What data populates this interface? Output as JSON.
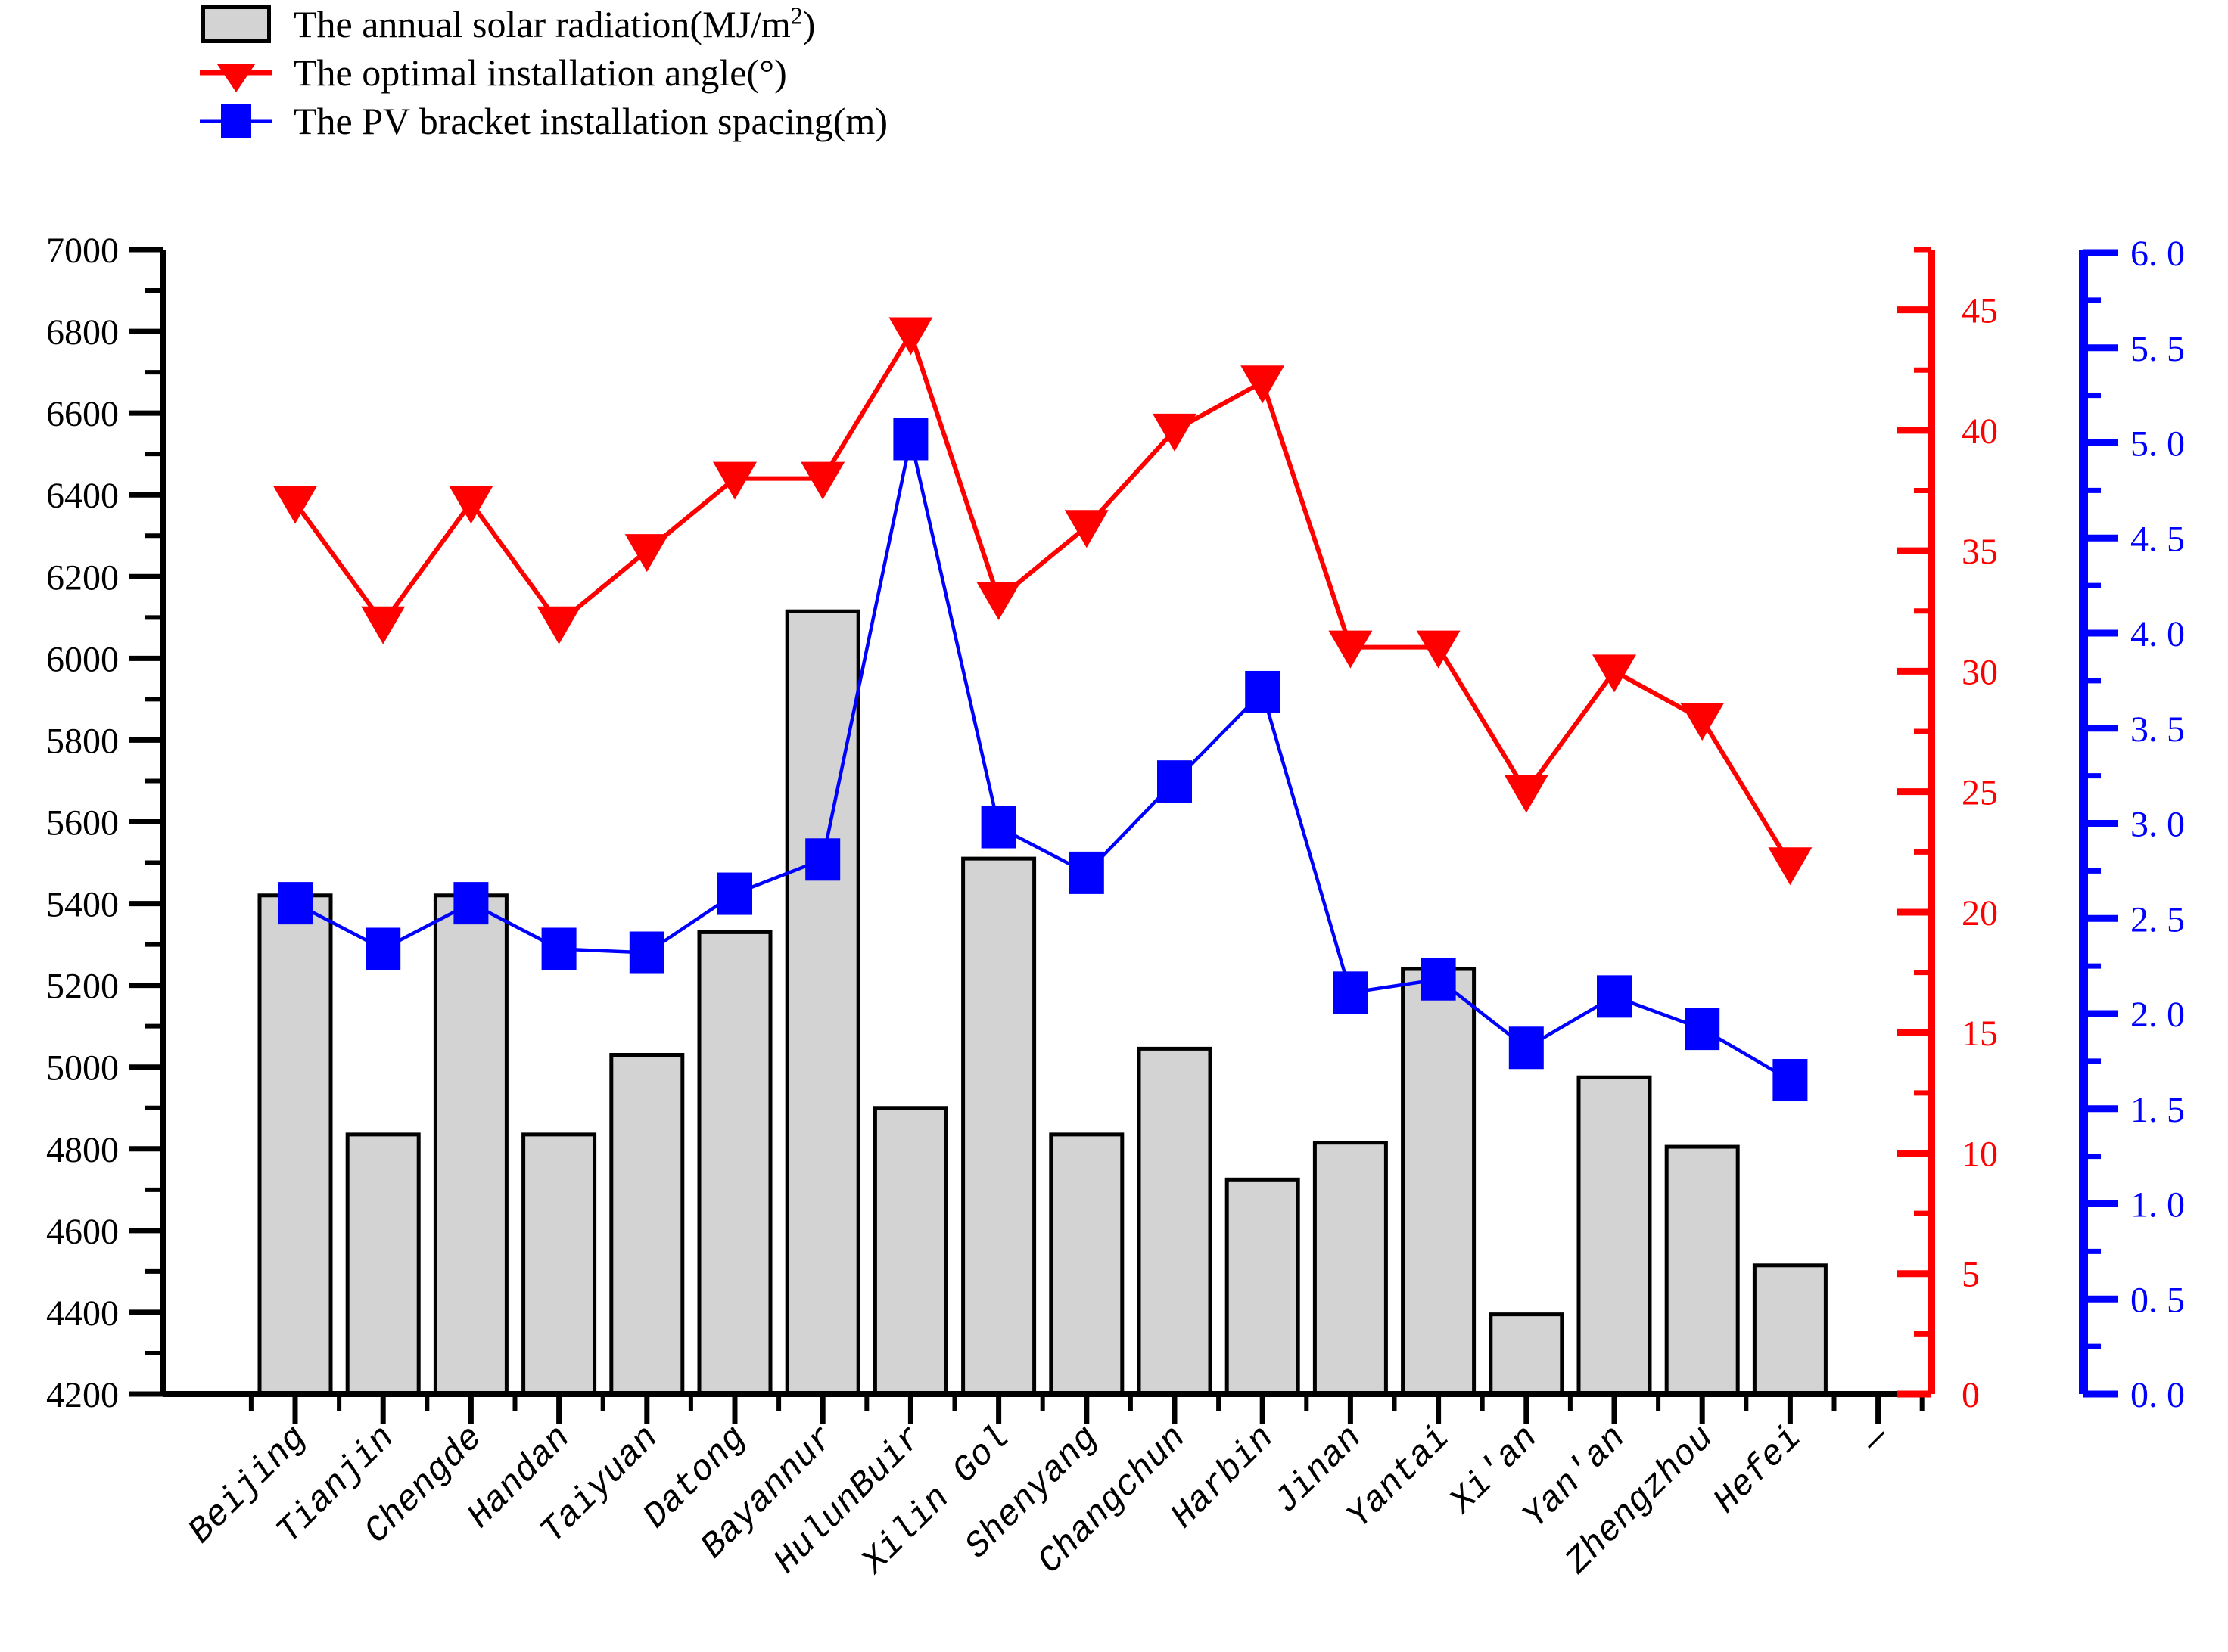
{
  "legend": [
    {
      "label_main": "The annual solar radiation(MJ/m",
      "label_sup": "2",
      "label_tail": ")"
    },
    {
      "label_main": "The optimal installation angle(°)"
    },
    {
      "label_main": "The PV bracket installation spacing(m)"
    }
  ],
  "colors": {
    "bar_fill": "#d3d3d3",
    "bar_stroke": "#000000",
    "angle_series": "#ff0000",
    "spacing_series": "#0000ff",
    "axis_black": "#000000"
  },
  "chart_data": {
    "type": "bar",
    "title": "",
    "xlabel": "",
    "ylabel": "",
    "categories": [
      "Beijing",
      "Tianjin",
      "Chengde",
      "Handan",
      "Taiyuan",
      "Datong",
      "Bayannur",
      "HulunBuir",
      "Xilin Gol",
      "Shenyang",
      "Changchun",
      "Harbin",
      "Jinan",
      "Yantai",
      "Xi'an",
      "Yan'an",
      "Zhengzhou",
      "Hefei",
      "—"
    ],
    "series": [
      {
        "name": "The annual solar radiation(MJ/m2)",
        "type": "bar",
        "axis": "left",
        "values": [
          5420,
          4835,
          5420,
          4835,
          5030,
          5330,
          6115,
          4900,
          5510,
          4835,
          5045,
          4725,
          4815,
          5240,
          4395,
          4975,
          4805,
          4515,
          null
        ]
      },
      {
        "name": "The optimal installation angle(deg)",
        "type": "line-triangle",
        "axis": "right_red",
        "values": [
          37,
          32,
          37,
          32,
          35,
          38,
          38,
          44,
          33,
          36,
          40,
          42,
          31,
          31,
          25,
          30,
          28,
          22,
          null
        ]
      },
      {
        "name": "The PV bracket installation spacing(m)",
        "type": "line-square",
        "axis": "right_blue",
        "values": [
          2.58,
          2.34,
          2.58,
          2.34,
          2.32,
          2.63,
          2.81,
          5.02,
          2.98,
          2.74,
          3.22,
          3.69,
          2.11,
          2.18,
          1.82,
          2.09,
          1.92,
          1.65,
          null
        ]
      }
    ],
    "axes": {
      "left": {
        "min": 4200,
        "max": 7000,
        "major_step": 200,
        "minor_step": 100,
        "grid": false,
        "tick_labels": [
          "7000",
          "6800",
          "6600",
          "6400",
          "6200",
          "6000",
          "5800",
          "5600",
          "5400",
          "5200",
          "5000",
          "4800",
          "4600",
          "4400",
          "4200"
        ]
      },
      "right_red": {
        "min": 0,
        "max": 47.5,
        "major_step": 5,
        "minor_step": 2.5,
        "grid": false,
        "tick_labels": [
          "45",
          "40",
          "35",
          "30",
          "25",
          "20",
          "15",
          "10",
          "5",
          "0"
        ],
        "tick_values": [
          45,
          40,
          35,
          30,
          25,
          20,
          15,
          10,
          5,
          0
        ]
      },
      "right_blue": {
        "min": 0,
        "max": 6.0,
        "major_step": 0.5,
        "minor_step": 0.25,
        "grid": false,
        "tick_labels": [
          "6. 0",
          "5. 5",
          "5. 0",
          "4. 5",
          "4. 0",
          "3. 5",
          "3. 0",
          "2. 5",
          "2. 0",
          "1. 5",
          "1. 0",
          "0. 5",
          "0. 0"
        ],
        "tick_values": [
          6.0,
          5.5,
          5.0,
          4.5,
          4.0,
          3.5,
          3.0,
          2.5,
          2.0,
          1.5,
          1.0,
          0.5,
          0.0
        ]
      }
    },
    "legend_position": "top-left"
  }
}
